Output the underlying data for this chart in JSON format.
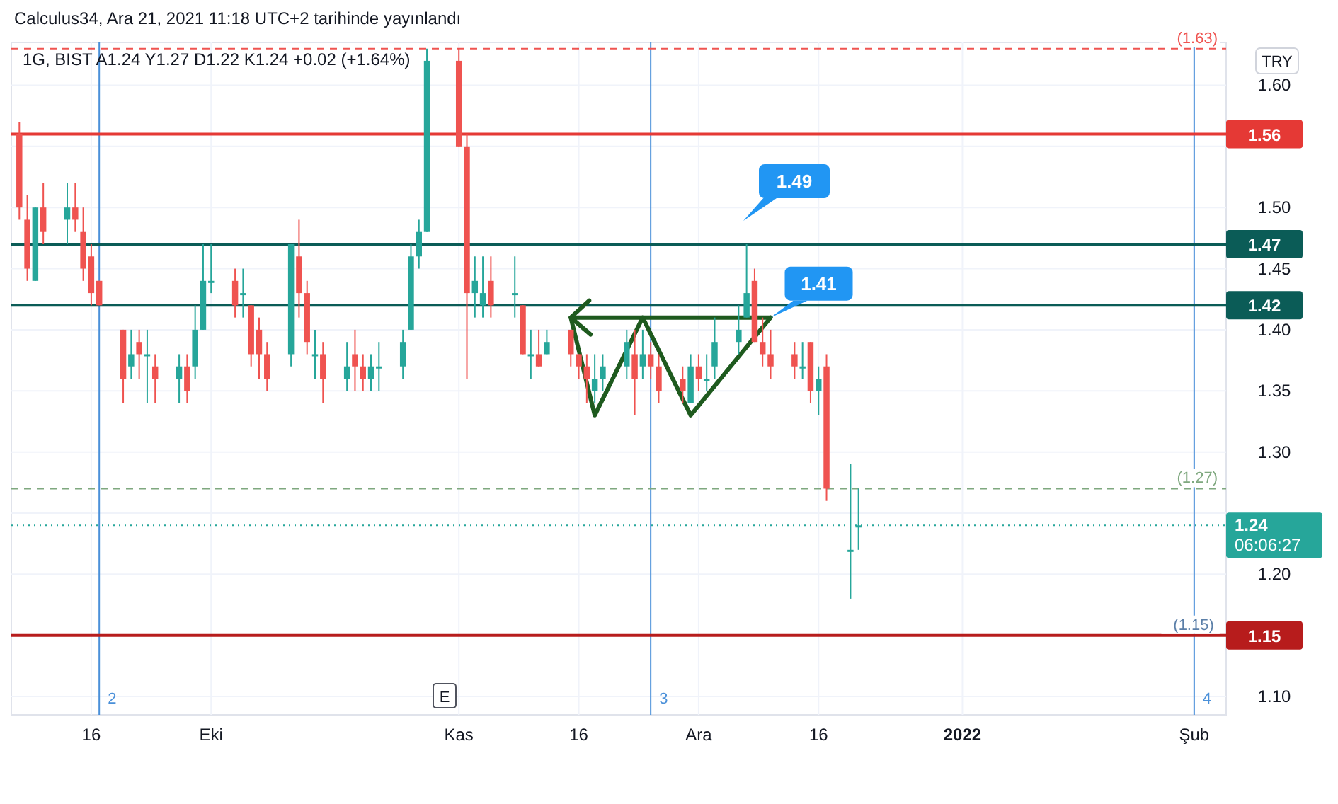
{
  "chart_data": {
    "type": "candlestick",
    "title": "Calculus34, Ara 21, 2021 11:18 UTC+2 tarihinde yayınlandı",
    "subtitle": "1G, BIST  A1.24  Y1.27  D1.22  K1.24  +0.02 (+1.64%)",
    "ylabel": "TRY",
    "x": [
      "2021-09-07",
      "2021-09-08",
      "2021-09-09",
      "2021-09-10",
      "2021-09-13",
      "2021-09-14",
      "2021-09-15",
      "2021-09-16",
      "2021-09-17",
      "2021-09-20",
      "2021-09-21",
      "2021-09-22",
      "2021-09-23",
      "2021-09-24",
      "2021-09-27",
      "2021-09-28",
      "2021-09-29",
      "2021-09-30",
      "2021-10-01",
      "2021-10-04",
      "2021-10-05",
      "2021-10-06",
      "2021-10-07",
      "2021-10-08",
      "2021-10-11",
      "2021-10-12",
      "2021-10-13",
      "2021-10-14",
      "2021-10-15",
      "2021-10-18",
      "2021-10-19",
      "2021-10-20",
      "2021-10-21",
      "2021-10-22",
      "2021-10-25",
      "2021-10-26",
      "2021-10-27",
      "2021-10-28",
      "2021-11-01",
      "2021-11-02",
      "2021-11-03",
      "2021-11-04",
      "2021-11-05",
      "2021-11-08",
      "2021-11-09",
      "2021-11-10",
      "2021-11-11",
      "2021-11-12",
      "2021-11-15",
      "2021-11-16",
      "2021-11-17",
      "2021-11-18",
      "2021-11-19",
      "2021-11-22",
      "2021-11-23",
      "2021-11-24",
      "2021-11-25",
      "2021-11-26",
      "2021-11-29",
      "2021-11-30",
      "2021-12-01",
      "2021-12-02",
      "2021-12-03",
      "2021-12-06",
      "2021-12-07",
      "2021-12-08",
      "2021-12-09",
      "2021-12-10",
      "2021-12-13",
      "2021-12-14",
      "2021-12-15",
      "2021-12-16",
      "2021-12-17",
      "2021-12-20",
      "2021-12-21"
    ],
    "ohlc": [
      [
        1.56,
        1.57,
        1.49,
        1.5
      ],
      [
        1.49,
        1.51,
        1.44,
        1.45
      ],
      [
        1.44,
        1.5,
        1.44,
        1.5
      ],
      [
        1.5,
        1.52,
        1.47,
        1.48
      ],
      [
        1.49,
        1.52,
        1.47,
        1.5
      ],
      [
        1.5,
        1.52,
        1.48,
        1.49
      ],
      [
        1.48,
        1.5,
        1.44,
        1.45
      ],
      [
        1.46,
        1.47,
        1.42,
        1.43
      ],
      [
        1.44,
        1.44,
        1.42,
        1.42
      ],
      [
        1.4,
        1.4,
        1.34,
        1.36
      ],
      [
        1.37,
        1.4,
        1.36,
        1.38
      ],
      [
        1.39,
        1.4,
        1.36,
        1.38
      ],
      [
        1.38,
        1.4,
        1.34,
        1.38
      ],
      [
        1.37,
        1.38,
        1.34,
        1.36
      ],
      [
        1.36,
        1.38,
        1.34,
        1.37
      ],
      [
        1.37,
        1.38,
        1.34,
        1.35
      ],
      [
        1.37,
        1.42,
        1.36,
        1.4
      ],
      [
        1.4,
        1.47,
        1.4,
        1.44
      ],
      [
        1.44,
        1.47,
        1.43,
        1.44
      ],
      [
        1.44,
        1.45,
        1.41,
        1.42
      ],
      [
        1.43,
        1.45,
        1.41,
        1.43
      ],
      [
        1.42,
        1.42,
        1.37,
        1.38
      ],
      [
        1.4,
        1.41,
        1.36,
        1.38
      ],
      [
        1.38,
        1.39,
        1.35,
        1.36
      ],
      [
        1.38,
        1.47,
        1.37,
        1.47
      ],
      [
        1.46,
        1.49,
        1.41,
        1.43
      ],
      [
        1.43,
        1.44,
        1.38,
        1.39
      ],
      [
        1.38,
        1.4,
        1.36,
        1.38
      ],
      [
        1.38,
        1.39,
        1.34,
        1.36
      ],
      [
        1.36,
        1.39,
        1.35,
        1.37
      ],
      [
        1.38,
        1.4,
        1.35,
        1.37
      ],
      [
        1.37,
        1.38,
        1.35,
        1.36
      ],
      [
        1.36,
        1.38,
        1.35,
        1.37
      ],
      [
        1.37,
        1.39,
        1.35,
        1.37
      ],
      [
        1.37,
        1.4,
        1.36,
        1.39
      ],
      [
        1.4,
        1.47,
        1.4,
        1.46
      ],
      [
        1.46,
        1.49,
        1.45,
        1.48
      ],
      [
        1.48,
        1.63,
        1.48,
        1.62
      ],
      [
        1.62,
        1.63,
        1.55,
        1.55
      ],
      [
        1.55,
        1.56,
        1.36,
        1.43
      ],
      [
        1.43,
        1.46,
        1.41,
        1.44
      ],
      [
        1.42,
        1.46,
        1.41,
        1.43
      ],
      [
        1.44,
        1.46,
        1.41,
        1.42
      ],
      [
        1.43,
        1.46,
        1.41,
        1.43
      ],
      [
        1.42,
        1.42,
        1.38,
        1.38
      ],
      [
        1.38,
        1.4,
        1.36,
        1.38
      ],
      [
        1.38,
        1.4,
        1.37,
        1.37
      ],
      [
        1.38,
        1.4,
        1.38,
        1.39
      ],
      [
        1.4,
        1.4,
        1.37,
        1.38
      ],
      [
        1.38,
        1.38,
        1.36,
        1.37
      ],
      [
        1.37,
        1.38,
        1.34,
        1.36
      ],
      [
        1.35,
        1.38,
        1.34,
        1.36
      ],
      [
        1.36,
        1.38,
        1.35,
        1.37
      ],
      [
        1.37,
        1.4,
        1.36,
        1.39
      ],
      [
        1.38,
        1.4,
        1.33,
        1.36
      ],
      [
        1.37,
        1.4,
        1.36,
        1.38
      ],
      [
        1.38,
        1.39,
        1.36,
        1.37
      ],
      [
        1.37,
        1.38,
        1.34,
        1.35
      ],
      [
        1.36,
        1.37,
        1.34,
        1.35
      ],
      [
        1.34,
        1.38,
        1.34,
        1.37
      ],
      [
        1.37,
        1.38,
        1.35,
        1.36
      ],
      [
        1.36,
        1.38,
        1.35,
        1.36
      ],
      [
        1.37,
        1.41,
        1.36,
        1.39
      ],
      [
        1.39,
        1.42,
        1.38,
        1.4
      ],
      [
        1.41,
        1.47,
        1.41,
        1.43
      ],
      [
        1.44,
        1.45,
        1.39,
        1.39
      ],
      [
        1.39,
        1.41,
        1.37,
        1.38
      ],
      [
        1.38,
        1.4,
        1.36,
        1.37
      ],
      [
        1.38,
        1.39,
        1.36,
        1.37
      ],
      [
        1.37,
        1.39,
        1.36,
        1.37
      ],
      [
        1.39,
        1.39,
        1.34,
        1.35
      ],
      [
        1.35,
        1.37,
        1.33,
        1.36
      ],
      [
        1.37,
        1.38,
        1.26,
        1.27
      ],
      [
        1.22,
        1.29,
        1.18,
        1.22
      ],
      [
        1.24,
        1.27,
        1.22,
        1.24
      ]
    ],
    "colors": [
      "#ef5350",
      "#ef5350",
      "#26a69a",
      "#ef5350",
      "#26a69a",
      "#ef5350",
      "#ef5350",
      "#ef5350",
      "#ef5350",
      "#ef5350",
      "#26a69a",
      "#ef5350",
      "#26a69a",
      "#ef5350",
      "#26a69a",
      "#ef5350",
      "#26a69a",
      "#26a69a",
      "#26a69a",
      "#ef5350",
      "#26a69a",
      "#ef5350",
      "#ef5350",
      "#ef5350",
      "#26a69a",
      "#ef5350",
      "#ef5350",
      "#26a69a",
      "#ef5350",
      "#26a69a",
      "#ef5350",
      "#ef5350",
      "#26a69a",
      "#26a69a",
      "#26a69a",
      "#26a69a",
      "#26a69a",
      "#26a69a",
      "#ef5350",
      "#ef5350",
      "#26a69a",
      "#26a69a",
      "#ef5350",
      "#26a69a",
      "#ef5350",
      "#26a69a",
      "#ef5350",
      "#26a69a",
      "#ef5350",
      "#ef5350",
      "#ef5350",
      "#26a69a",
      "#26a69a",
      "#26a69a",
      "#ef5350",
      "#26a69a",
      "#ef5350",
      "#ef5350",
      "#ef5350",
      "#26a69a",
      "#ef5350",
      "#26a69a",
      "#26a69a",
      "#26a69a",
      "#26a69a",
      "#ef5350",
      "#ef5350",
      "#ef5350",
      "#ef5350",
      "#26a69a",
      "#ef5350",
      "#26a69a",
      "#ef5350",
      "#26a69a",
      "#26a69a"
    ],
    "series": [
      {
        "type": "line",
        "color": "#1e5a1e",
        "x": [
          "2021-11-15",
          "2021-11-18",
          "2021-11-24",
          "2021-11-30",
          "2021-12-10"
        ],
        "values": [
          1.41,
          1.33,
          1.41,
          1.33,
          1.41
        ]
      }
    ],
    "xlim": [
      "2021-09-06",
      "2022-02-05"
    ],
    "xticks": [
      {
        "value": "2021-09-16",
        "label": "16"
      },
      {
        "value": "2021-10-01",
        "label": "Eki"
      },
      {
        "value": "2021-11-01",
        "label": "Kas"
      },
      {
        "value": "2021-11-16",
        "label": "16"
      },
      {
        "value": "2021-12-01",
        "label": "Ara"
      },
      {
        "value": "2021-12-16",
        "label": "16"
      },
      {
        "value": "2022-01-03",
        "label": "2022"
      },
      {
        "value": "2022-02-01",
        "label": "Şub"
      }
    ],
    "ylim": [
      1.085,
      1.635
    ],
    "yticks": [
      {
        "value": 1.1,
        "label": "1.10"
      },
      {
        "value": 1.15,
        "label": null
      },
      {
        "value": 1.2,
        "label": "1.20"
      },
      {
        "value": 1.25,
        "label": null
      },
      {
        "value": 1.3,
        "label": "1.30"
      },
      1.35,
      {
        "value": 1.4,
        "label": "1.40"
      },
      1.45,
      {
        "value": 1.5,
        "label": "1.50"
      },
      {
        "value": 1.55,
        "label": null
      },
      {
        "value": 1.6,
        "label": "1.60"
      }
    ],
    "grid": true,
    "ref_lines": [
      {
        "axis": "y",
        "value": 1.63,
        "label": "(1.63)",
        "color": "#ef5350",
        "line_style": "dashed"
      },
      {
        "axis": "y",
        "value": 1.56,
        "label": "1.56",
        "color": "#e53935"
      },
      {
        "axis": "y",
        "value": 1.47,
        "label": "1.47",
        "color": "#0b5c57"
      },
      {
        "axis": "y",
        "value": 1.42,
        "label": "1.42",
        "color": "#0b5c57"
      },
      {
        "axis": "y",
        "value": 1.27,
        "label": "(1.27)",
        "color": "#7fa87f",
        "line_style": "dashed"
      },
      {
        "axis": "y",
        "value": 1.24,
        "label": "1.24",
        "color": "#26a69a",
        "line_style": "dotted"
      },
      {
        "axis": "y",
        "value": 1.15,
        "label": "1.15",
        "color": "#b71c1c"
      },
      {
        "axis": "x",
        "value": "2021-09-17",
        "label": "2",
        "color": "#4a90d9"
      },
      {
        "axis": "x",
        "value": "2021-11-25",
        "label": "3",
        "color": "#4a90d9"
      },
      {
        "axis": "x",
        "value": "2022-02-01",
        "label": "4",
        "color": "#4a90d9"
      }
    ],
    "annotations": [
      "1.49",
      {
        "text": "1.41",
        "x": "2021-12-10",
        "y": 1.41
      },
      {
        "text": "(1.15)",
        "x": "2022-02-01",
        "y": 1.15
      },
      "E",
      "06:06:27"
    ]
  }
}
